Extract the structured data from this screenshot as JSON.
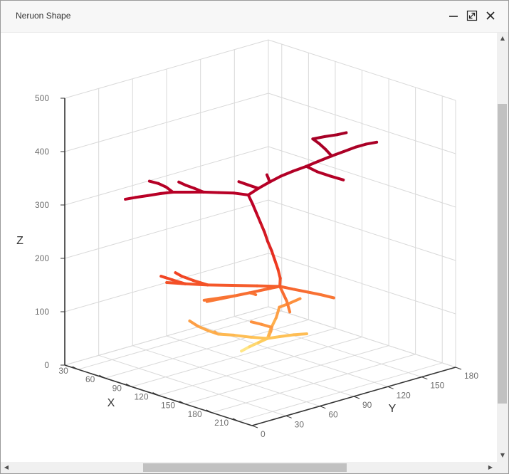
{
  "window": {
    "title": "Neruon Shape",
    "buttons": [
      "minimize",
      "maximize",
      "close"
    ]
  },
  "colors": {
    "axis": "#333333",
    "grid": "#d9d9d9",
    "tick_label": "#6e6e6e",
    "scale": [
      "#ffffb2",
      "#fecc5c",
      "#fd8d3c",
      "#f03b20",
      "#bd0026",
      "#a50026"
    ]
  },
  "chart_data": {
    "type": "line3d",
    "title": "",
    "xlabel": "X",
    "ylabel": "Y",
    "zlabel": "Z",
    "xlim": [
      15,
      225
    ],
    "ylim": [
      0,
      180
    ],
    "zlim": [
      0,
      500
    ],
    "x_ticks": [
      "30",
      "60",
      "90",
      "120",
      "150",
      "180",
      "210"
    ],
    "y_ticks": [
      "0",
      "30",
      "60",
      "90",
      "120",
      "150",
      "180"
    ],
    "z_ticks": [
      "0",
      "100",
      "200",
      "300",
      "400",
      "500"
    ],
    "color_by": "z",
    "grid": true,
    "segments": [
      {
        "points": [
          [
            104,
            86,
            22
          ],
          [
            108,
            90,
            30
          ],
          [
            113,
            94,
            38
          ],
          [
            118,
            98,
            46
          ]
        ]
      },
      {
        "points": [
          [
            118,
            98,
            46
          ],
          [
            124,
            104,
            49
          ],
          [
            131,
            111,
            52
          ],
          [
            138,
            117,
            54
          ]
        ]
      },
      {
        "points": [
          [
            118,
            98,
            46
          ],
          [
            114,
            104,
            58
          ],
          [
            110,
            112,
            72
          ],
          [
            106,
            118,
            86
          ]
        ]
      },
      {
        "points": [
          [
            118,
            98,
            46
          ],
          [
            125,
            94,
            58
          ],
          [
            132,
            90,
            72
          ],
          [
            138,
            86,
            85
          ]
        ]
      },
      {
        "points": [
          [
            118,
            98,
            46
          ],
          [
            111,
            89,
            50
          ],
          [
            103,
            80,
            55
          ],
          [
            96,
            72,
            58
          ]
        ]
      },
      {
        "points": [
          [
            96,
            72,
            58
          ],
          [
            92,
            66,
            66
          ],
          [
            88,
            60,
            76
          ],
          [
            84,
            56,
            86
          ]
        ]
      },
      {
        "points": [
          [
            96,
            72,
            58
          ],
          [
            101,
            66,
            66
          ],
          [
            106,
            61,
            74
          ]
        ]
      },
      {
        "points": [
          [
            106,
            118,
            86
          ],
          [
            110,
            124,
            92
          ],
          [
            114,
            130,
            99
          ]
        ]
      },
      {
        "points": [
          [
            138,
            86,
            85
          ],
          [
            134,
            80,
            92
          ],
          [
            129,
            75,
            97
          ]
        ]
      },
      {
        "points": [
          [
            123,
            105,
            142
          ],
          [
            132,
            104,
            120
          ],
          [
            138,
            102,
            104
          ]
        ]
      },
      {
        "points": [
          [
            123,
            105,
            142
          ],
          [
            116,
            98,
            137
          ],
          [
            108,
            90,
            131
          ],
          [
            101,
            83,
            126
          ],
          [
            94,
            76,
            121
          ],
          [
            87,
            69,
            116
          ]
        ]
      },
      {
        "points": [
          [
            123,
            105,
            142
          ],
          [
            130,
            112,
            136
          ],
          [
            136,
            119,
            130
          ],
          [
            142,
            126,
            124
          ],
          [
            148,
            133,
            117
          ]
        ]
      },
      {
        "points": [
          [
            123,
            105,
            142
          ],
          [
            114,
            92,
            146
          ],
          [
            104,
            78,
            150
          ],
          [
            94,
            64,
            154
          ],
          [
            84,
            52,
            158
          ],
          [
            76,
            42,
            162
          ]
        ]
      },
      {
        "points": [
          [
            94,
            64,
            154
          ],
          [
            88,
            56,
            164
          ],
          [
            84,
            49,
            174
          ],
          [
            82,
            45,
            182
          ]
        ]
      },
      {
        "points": [
          [
            84,
            52,
            158
          ],
          [
            80,
            44,
            168
          ],
          [
            76,
            37,
            177
          ]
        ]
      },
      {
        "points": [
          [
            101,
            83,
            126
          ],
          [
            93,
            75,
            122
          ],
          [
            85,
            68,
            118
          ]
        ]
      },
      {
        "points": [
          [
            108,
            90,
            131
          ],
          [
            104,
            96,
            124
          ],
          [
            101,
            101,
            117
          ]
        ]
      },
      {
        "points": [
          [
            123,
            105,
            142
          ],
          [
            126,
            103,
            160
          ],
          [
            126,
            101,
            178
          ],
          [
            125,
            99,
            196
          ],
          [
            124,
            97,
            214
          ],
          [
            122,
            95,
            232
          ],
          [
            121,
            93,
            250
          ],
          [
            119,
            91,
            268
          ],
          [
            117,
            89,
            286
          ],
          [
            115,
            87,
            304
          ],
          [
            113,
            85,
            320
          ]
        ]
      },
      {
        "points": [
          [
            113,
            85,
            320
          ],
          [
            106,
            78,
            324
          ],
          [
            99,
            70,
            326
          ],
          [
            92,
            62,
            328
          ],
          [
            85,
            54,
            329
          ],
          [
            78,
            46,
            330
          ]
        ]
      },
      {
        "points": [
          [
            78,
            46,
            330
          ],
          [
            72,
            40,
            328
          ],
          [
            66,
            33,
            325
          ],
          [
            60,
            27,
            322
          ],
          [
            55,
            22,
            319
          ]
        ]
      },
      {
        "points": [
          [
            78,
            46,
            330
          ],
          [
            73,
            44,
            338
          ],
          [
            68,
            41,
            344
          ],
          [
            63,
            37,
            348
          ]
        ]
      },
      {
        "points": [
          [
            92,
            62,
            328
          ],
          [
            88,
            57,
            336
          ],
          [
            85,
            52,
            343
          ],
          [
            82,
            48,
            350
          ]
        ]
      },
      {
        "points": [
          [
            113,
            85,
            320
          ],
          [
            118,
            90,
            332
          ],
          [
            123,
            96,
            343
          ],
          [
            128,
            102,
            353
          ],
          [
            134,
            108,
            362
          ],
          [
            140,
            115,
            370
          ]
        ]
      },
      {
        "points": [
          [
            140,
            115,
            370
          ],
          [
            146,
            121,
            379
          ],
          [
            152,
            128,
            388
          ],
          [
            158,
            134,
            396
          ],
          [
            164,
            140,
            404
          ]
        ]
      },
      {
        "points": [
          [
            164,
            140,
            404
          ],
          [
            168,
            146,
            408
          ],
          [
            172,
            152,
            410
          ]
        ]
      },
      {
        "points": [
          [
            152,
            128,
            388
          ],
          [
            150,
            124,
            402
          ],
          [
            148,
            120,
            414
          ],
          [
            146,
            116,
            424
          ]
        ]
      },
      {
        "points": [
          [
            146,
            116,
            424
          ],
          [
            152,
            122,
            428
          ],
          [
            158,
            128,
            431
          ],
          [
            162,
            133,
            434
          ]
        ]
      },
      {
        "points": [
          [
            140,
            115,
            370
          ],
          [
            146,
            120,
            360
          ],
          [
            153,
            126,
            352
          ],
          [
            160,
            132,
            345
          ]
        ]
      },
      {
        "points": [
          [
            123,
            96,
            343
          ],
          [
            124,
            94,
            352
          ],
          [
            125,
            92,
            360
          ]
        ]
      },
      {
        "points": [
          [
            118,
            90,
            332
          ],
          [
            114,
            84,
            340
          ],
          [
            110,
            79,
            347
          ]
        ]
      }
    ]
  }
}
